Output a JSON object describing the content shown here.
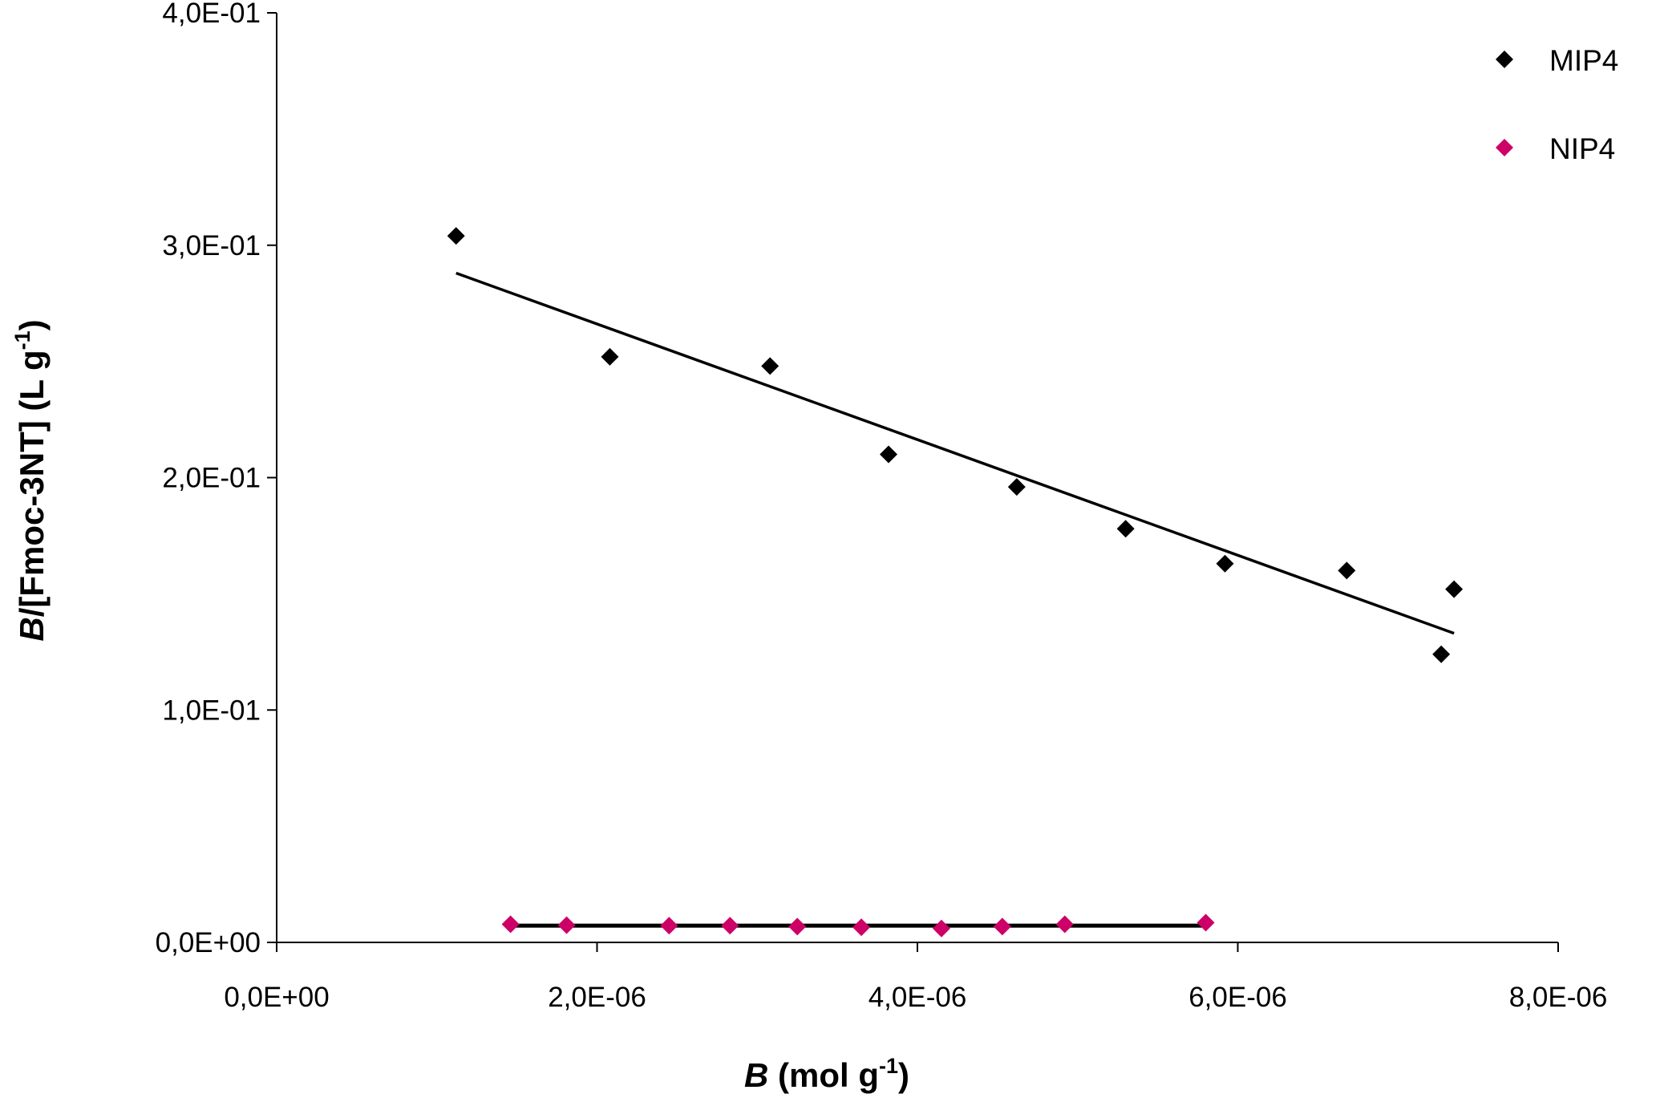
{
  "chart_data": {
    "type": "scatter",
    "xlabel": {
      "symbol": "B",
      "text": " (mol g",
      "sup": "-1",
      "close": ")"
    },
    "ylabel": {
      "symbol": "B",
      "text": "/[Fmoc-3NT] (L g",
      "sup": "-1",
      "close": ")"
    },
    "xlim": [
      0,
      8e-06
    ],
    "ylim": [
      0,
      0.4
    ],
    "x_ticks": [
      0,
      2e-06,
      4e-06,
      6e-06,
      8e-06
    ],
    "x_tick_labels": [
      "0,0E+00",
      "2,0E-06",
      "4,0E-06",
      "6,0E-06",
      "8,0E-06"
    ],
    "y_ticks": [
      0,
      0.1,
      0.2,
      0.3,
      0.4
    ],
    "y_tick_labels": [
      "0,0E+00",
      "1,0E-01",
      "2,0E-01",
      "3,0E-01",
      "4,0E-01"
    ],
    "grid": false,
    "legend_position": "top-right",
    "series": [
      {
        "name": "MIP4",
        "color": "#000000",
        "marker": "diamond",
        "x": [
          1.12e-06,
          2.08e-06,
          3.08e-06,
          3.82e-06,
          4.62e-06,
          5.3e-06,
          5.92e-06,
          6.68e-06,
          7.27e-06,
          7.35e-06
        ],
        "y": [
          0.304,
          0.252,
          0.248,
          0.21,
          0.196,
          0.178,
          0.163,
          0.16,
          0.124,
          0.152
        ],
        "trendline": {
          "x": [
            1.12e-06,
            7.35e-06
          ],
          "y": [
            0.288,
            0.133
          ]
        }
      },
      {
        "name": "NIP4",
        "color": "#cc0066",
        "marker": "diamond",
        "x": [
          1.46e-06,
          1.81e-06,
          2.45e-06,
          2.83e-06,
          3.25e-06,
          3.65e-06,
          4.15e-06,
          4.53e-06,
          4.92e-06,
          5.8e-06
        ],
        "y": [
          0.0078,
          0.0074,
          0.0072,
          0.0072,
          0.0068,
          0.0065,
          0.006,
          0.0068,
          0.0078,
          0.0085
        ],
        "trendline": {
          "x": [
            1.46e-06,
            5.8e-06
          ],
          "y": [
            0.0072,
            0.0072
          ]
        }
      }
    ]
  }
}
